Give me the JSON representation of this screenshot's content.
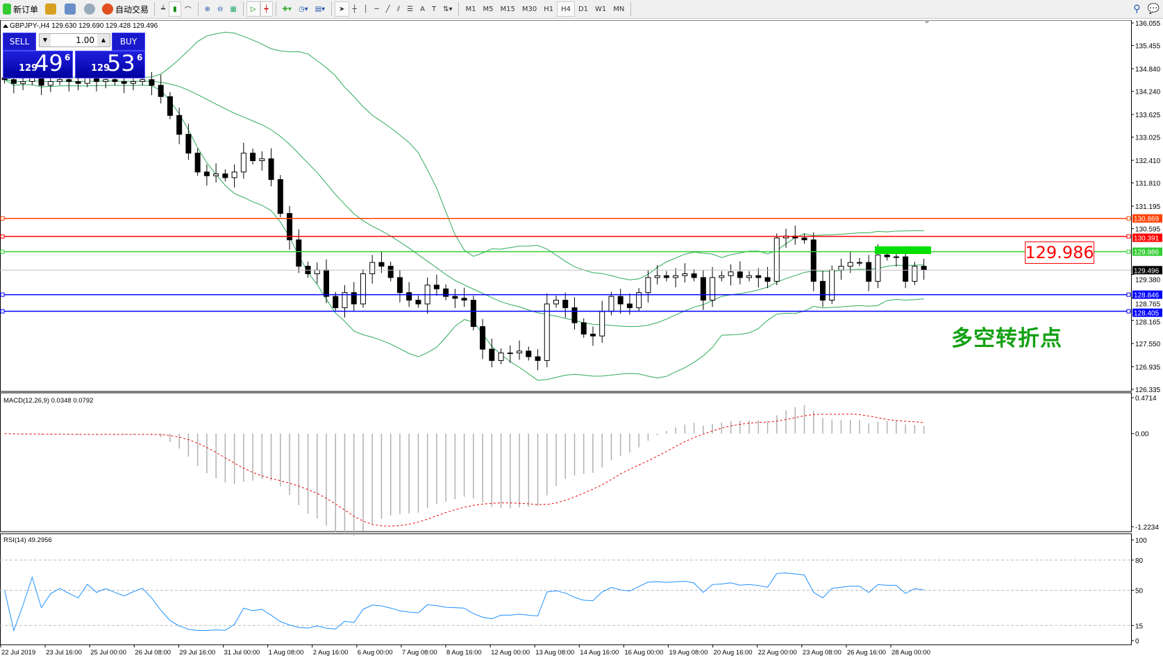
{
  "toolbar": {
    "new_order": "新订单",
    "auto_trading": "自动交易",
    "timeframes": [
      "M1",
      "M5",
      "M15",
      "M30",
      "H1",
      "H4",
      "D1",
      "W1",
      "MN"
    ],
    "active_timeframe": "H4"
  },
  "chart": {
    "header": "GBPJPY-,H4  129.630 129.690 129.428 129.496",
    "symbol": "GBPJPY-",
    "timeframe": "H4"
  },
  "trade_panel": {
    "sell": "SELL",
    "buy": "BUY",
    "lot": "1.00",
    "sell_small": "129",
    "sell_big": "49",
    "sell_pip": "6",
    "buy_small": "129",
    "buy_big": "53",
    "buy_pip": "6"
  },
  "price_axis": [
    "136.055",
    "135.455",
    "134.840",
    "134.240",
    "133.625",
    "133.025",
    "132.410",
    "131.810",
    "131.195",
    "130.595",
    "129.380",
    "128.765",
    "128.165",
    "127.550",
    "126.935",
    "126.335"
  ],
  "levels": [
    {
      "price": "130.869",
      "color": "#ff4000"
    },
    {
      "price": "130.391",
      "color": "#ff0000"
    },
    {
      "price": "129.986",
      "color": "#32cd32"
    },
    {
      "price": "129.496",
      "color": "#000000"
    },
    {
      "price": "128.846",
      "color": "#0000ff"
    },
    {
      "price": "128.405",
      "color": "#0000ff"
    }
  ],
  "annotation": {
    "price_label": "129.986",
    "text": "多空转折点",
    "text_color": "#13a013"
  },
  "closes": [
    134.55,
    134.45,
    134.5,
    134.6,
    134.4,
    134.5,
    134.55,
    134.5,
    134.45,
    134.6,
    134.5,
    134.55,
    134.5,
    134.45,
    134.5,
    134.55,
    134.4,
    134.1,
    133.6,
    133.1,
    132.6,
    132.1,
    132.0,
    132.05,
    131.95,
    132.1,
    132.6,
    132.4,
    132.45,
    131.9,
    131.0,
    130.3,
    129.6,
    129.4,
    129.5,
    128.8,
    128.5,
    128.9,
    128.6,
    129.4,
    129.7,
    129.6,
    129.3,
    128.9,
    128.7,
    128.6,
    129.1,
    129.0,
    128.8,
    128.75,
    128.7,
    128.0,
    127.4,
    127.1,
    127.3,
    127.3,
    127.35,
    127.2,
    127.1,
    128.6,
    128.7,
    128.5,
    128.1,
    127.8,
    127.75,
    128.4,
    128.8,
    128.6,
    128.5,
    128.9,
    129.3,
    129.35,
    129.3,
    129.35,
    129.4,
    129.3,
    128.7,
    129.3,
    129.35,
    129.45,
    129.3,
    129.35,
    129.3,
    129.2,
    130.35,
    130.4,
    130.35,
    130.3,
    129.2,
    128.7,
    129.5,
    129.6,
    129.7,
    129.7,
    129.2,
    129.9,
    129.85,
    129.85,
    129.2,
    129.6,
    129.5
  ],
  "macd": {
    "label": "MACD(12,26,9) 0.0348 0.0792",
    "axis": [
      "0.4714",
      "0.00",
      "-1.2234"
    ]
  },
  "rsi": {
    "label": "RSI(14) 49.2956",
    "axis": [
      "100",
      "80",
      "50",
      "15",
      "0"
    ]
  },
  "time_axis": [
    "22 Jul 2019",
    "23 Jul 16:00",
    "25 Jul 00:00",
    "26 Jul 08:00",
    "29 Jul 16:00",
    "31 Jul 00:00",
    "1 Aug 08:00",
    "2 Aug 16:00",
    "6 Aug 00:00",
    "7 Aug 08:00",
    "8 Aug 16:00",
    "12 Aug 00:00",
    "13 Aug 08:00",
    "14 Aug 16:00",
    "16 Aug 00:00",
    "19 Aug 08:00",
    "20 Aug 16:00",
    "22 Aug 00:00",
    "23 Aug 08:00",
    "26 Aug 16:00",
    "28 Aug 00:00"
  ]
}
